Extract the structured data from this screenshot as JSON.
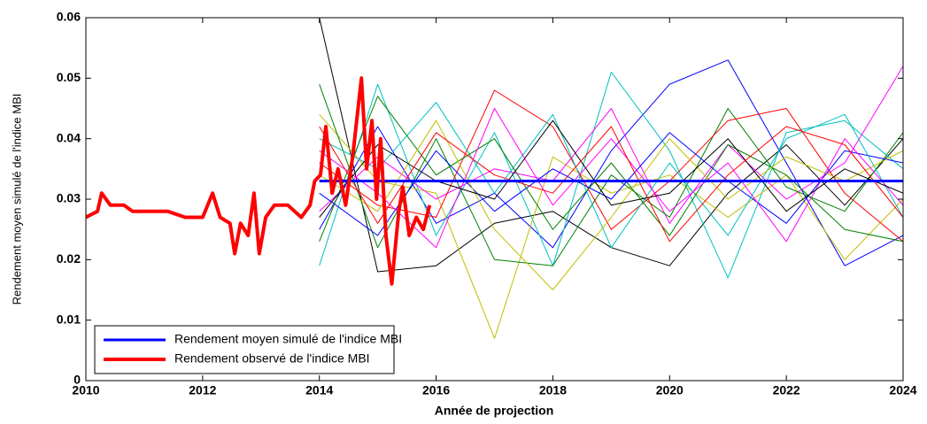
{
  "chart_data": {
    "type": "line",
    "xlabel": "Année de projection",
    "ylabel": "Rendement moyen simulé de l'indice MBI",
    "xlim": [
      2010,
      2024
    ],
    "xticks": [
      2010,
      2012,
      2014,
      2016,
      2018,
      2020,
      2022,
      2024
    ],
    "ylim": [
      0,
      0.06
    ],
    "yticks": [
      0,
      0.01,
      0.02,
      0.03,
      0.04,
      0.05,
      0.06
    ],
    "grid": false,
    "legend": "lower left",
    "series": [
      {
        "color": "#000000",
        "x": [
          2014,
          2015,
          2016,
          2017,
          2018,
          2019,
          2020,
          2021,
          2022,
          2023,
          2024
        ],
        "values": [
          0.06,
          0.018,
          0.019,
          0.026,
          0.028,
          0.022,
          0.019,
          0.031,
          0.039,
          0.029,
          0.04
        ]
      },
      {
        "color": "#0000ff",
        "x": [
          2014,
          2015,
          2016,
          2017,
          2018,
          2019,
          2020,
          2021,
          2022,
          2023,
          2024
        ],
        "values": [
          0.025,
          0.042,
          0.026,
          0.031,
          0.022,
          0.038,
          0.049,
          0.053,
          0.036,
          0.019,
          0.024
        ]
      },
      {
        "color": "#00c0c0",
        "x": [
          2014,
          2015,
          2016,
          2017,
          2018,
          2019,
          2020,
          2021,
          2022,
          2023,
          2024
        ],
        "values": [
          0.019,
          0.049,
          0.024,
          0.041,
          0.019,
          0.051,
          0.038,
          0.017,
          0.041,
          0.043,
          0.035
        ]
      },
      {
        "color": "#bfbf00",
        "x": [
          2014,
          2015,
          2016,
          2017,
          2018,
          2019,
          2020,
          2021,
          2022,
          2023,
          2024
        ],
        "values": [
          0.044,
          0.033,
          0.031,
          0.007,
          0.037,
          0.031,
          0.034,
          0.027,
          0.034,
          0.02,
          0.03
        ]
      },
      {
        "color": "#ff00ff",
        "x": [
          2014,
          2015,
          2016,
          2017,
          2018,
          2019,
          2020,
          2021,
          2022,
          2023,
          2024
        ],
        "values": [
          0.028,
          0.037,
          0.03,
          0.035,
          0.033,
          0.045,
          0.026,
          0.039,
          0.03,
          0.036,
          0.052
        ]
      },
      {
        "color": "#008000",
        "x": [
          2014,
          2015,
          2016,
          2017,
          2018,
          2019,
          2020,
          2021,
          2022,
          2023,
          2024
        ],
        "values": [
          0.049,
          0.022,
          0.04,
          0.02,
          0.019,
          0.034,
          0.027,
          0.045,
          0.032,
          0.028,
          0.041
        ]
      },
      {
        "color": "#ff0000",
        "x": [
          2014,
          2015,
          2016,
          2017,
          2018,
          2019,
          2020,
          2021,
          2022,
          2023,
          2024
        ],
        "values": [
          0.036,
          0.029,
          0.027,
          0.048,
          0.042,
          0.025,
          0.033,
          0.043,
          0.045,
          0.031,
          0.023
        ]
      },
      {
        "color": "#0000ff",
        "x": [
          2014,
          2015,
          2016,
          2017,
          2018,
          2019,
          2020,
          2021,
          2022,
          2023,
          2024
        ],
        "values": [
          0.031,
          0.024,
          0.038,
          0.028,
          0.035,
          0.03,
          0.041,
          0.033,
          0.026,
          0.038,
          0.036
        ]
      },
      {
        "color": "#00c0c0",
        "x": [
          2014,
          2015,
          2016,
          2017,
          2018,
          2019,
          2020,
          2021,
          2022,
          2023,
          2024
        ],
        "values": [
          0.04,
          0.035,
          0.046,
          0.031,
          0.044,
          0.022,
          0.036,
          0.024,
          0.04,
          0.044,
          0.027
        ]
      },
      {
        "color": "#008000",
        "x": [
          2014,
          2015,
          2016,
          2017,
          2018,
          2019,
          2020,
          2021,
          2022,
          2023,
          2024
        ],
        "values": [
          0.023,
          0.047,
          0.034,
          0.04,
          0.025,
          0.036,
          0.024,
          0.039,
          0.034,
          0.025,
          0.023
        ]
      },
      {
        "color": "#bfbf00",
        "x": [
          2014,
          2015,
          2016,
          2017,
          2018,
          2019,
          2020,
          2021,
          2022,
          2023,
          2024
        ],
        "values": [
          0.034,
          0.028,
          0.043,
          0.025,
          0.015,
          0.027,
          0.04,
          0.03,
          0.037,
          0.033,
          0.038
        ]
      },
      {
        "color": "#ff00ff",
        "x": [
          2014,
          2015,
          2016,
          2017,
          2018,
          2019,
          2020,
          2021,
          2022,
          2023,
          2024
        ],
        "values": [
          0.038,
          0.031,
          0.022,
          0.045,
          0.029,
          0.04,
          0.028,
          0.036,
          0.023,
          0.04,
          0.029
        ]
      },
      {
        "color": "#000000",
        "x": [
          2014,
          2015,
          2016,
          2017,
          2018,
          2019,
          2020,
          2021,
          2022,
          2023,
          2024
        ],
        "values": [
          0.027,
          0.039,
          0.033,
          0.03,
          0.043,
          0.029,
          0.031,
          0.04,
          0.028,
          0.035,
          0.031
        ]
      },
      {
        "color": "#ff0000",
        "x": [
          2014,
          2015,
          2016,
          2017,
          2018,
          2019,
          2020,
          2021,
          2022,
          2023,
          2024
        ],
        "values": [
          0.042,
          0.026,
          0.041,
          0.034,
          0.031,
          0.042,
          0.023,
          0.034,
          0.042,
          0.039,
          0.027
        ]
      },
      {
        "name": "Rendement moyen simulé de l'indice MBI",
        "color": "#0000ff",
        "width": 3,
        "x": [
          2014,
          2024
        ],
        "values": [
          0.033,
          0.033
        ]
      },
      {
        "name": "Rendement observé de l'indice MBI",
        "color": "#ff0000",
        "width": 4,
        "x": [
          2010.0,
          2010.2,
          2010.27,
          2010.42,
          2010.65,
          2010.8,
          2011.1,
          2011.4,
          2011.7,
          2012.0,
          2012.17,
          2012.3,
          2012.47,
          2012.55,
          2012.65,
          2012.78,
          2012.88,
          2012.97,
          2013.08,
          2013.23,
          2013.46,
          2013.69,
          2013.84,
          2013.92,
          2014.02,
          2014.11,
          2014.22,
          2014.32,
          2014.45,
          2014.57,
          2014.72,
          2014.81,
          2014.9,
          2014.98,
          2015.05,
          2015.14,
          2015.24,
          2015.36,
          2015.43,
          2015.54,
          2015.66,
          2015.78,
          2015.89
        ],
        "values": [
          0.027,
          0.028,
          0.031,
          0.029,
          0.029,
          0.028,
          0.028,
          0.028,
          0.027,
          0.027,
          0.031,
          0.027,
          0.026,
          0.021,
          0.026,
          0.024,
          0.031,
          0.021,
          0.027,
          0.029,
          0.029,
          0.027,
          0.029,
          0.033,
          0.034,
          0.042,
          0.031,
          0.035,
          0.029,
          0.037,
          0.05,
          0.035,
          0.043,
          0.03,
          0.04,
          0.024,
          0.016,
          0.028,
          0.032,
          0.024,
          0.027,
          0.025,
          0.029
        ]
      }
    ]
  }
}
